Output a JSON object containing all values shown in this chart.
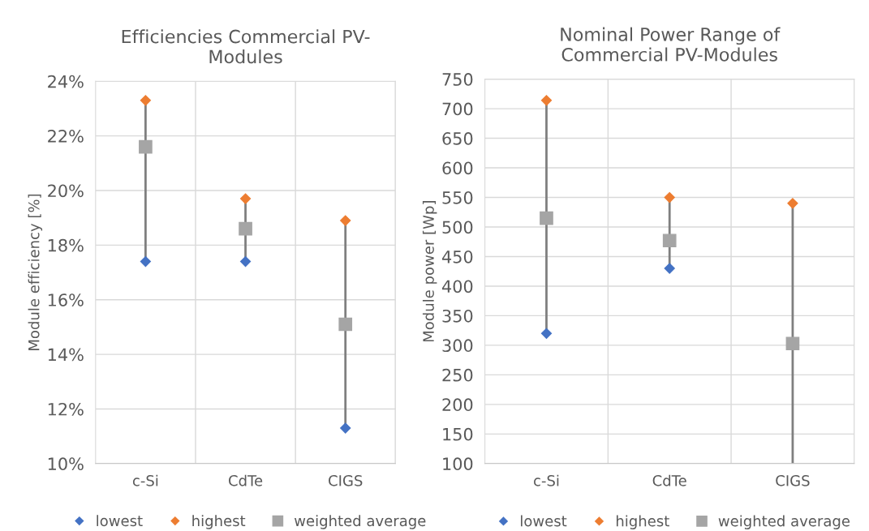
{
  "chart_data": [
    {
      "type": "scatter",
      "title": "Efficiencies Commercial PV-\nModules",
      "ylabel": "Module efficiency [%]",
      "categories": [
        "c-Si",
        "CdTe",
        "CIGS"
      ],
      "series": [
        {
          "name": "lowest",
          "color": "#4472c4",
          "marker": "diamond",
          "values": [
            17.4,
            17.4,
            11.3
          ]
        },
        {
          "name": "highest",
          "color": "#ed7d31",
          "marker": "diamond",
          "values": [
            23.3,
            19.7,
            18.9
          ]
        },
        {
          "name": "weighted average",
          "color": "#a5a5a5",
          "marker": "square",
          "values": [
            21.6,
            18.6,
            15.1
          ]
        }
      ],
      "ylim": [
        10,
        24
      ],
      "yticks": [
        {
          "value": 10,
          "label": "10%"
        },
        {
          "value": 12,
          "label": "12%"
        },
        {
          "value": 14,
          "label": "14%"
        },
        {
          "value": 16,
          "label": "16%"
        },
        {
          "value": 18,
          "label": "18%"
        },
        {
          "value": 20,
          "label": "20%"
        },
        {
          "value": 22,
          "label": "22%"
        },
        {
          "value": 24,
          "label": "24%"
        }
      ],
      "grid": true,
      "legend": "bottom"
    },
    {
      "type": "scatter",
      "title": "Nominal Power Range of\nCommercial PV-Modules",
      "ylabel": "Module power [Wp]",
      "categories": [
        "c-Si",
        "CdTe",
        "CIGS"
      ],
      "series": [
        {
          "name": "lowest",
          "color": "#4472c4",
          "marker": "diamond",
          "values": [
            320,
            430,
            null
          ]
        },
        {
          "name": "highest",
          "color": "#ed7d31",
          "marker": "diamond",
          "values": [
            714,
            550,
            540
          ]
        },
        {
          "name": "weighted average",
          "color": "#a5a5a5",
          "marker": "square",
          "values": [
            515,
            477,
            303
          ]
        }
      ],
      "ylim": [
        100,
        750
      ],
      "yticks": [
        100,
        150,
        200,
        250,
        300,
        350,
        400,
        450,
        500,
        550,
        600,
        650,
        700,
        750
      ],
      "grid": true,
      "legend": "bottom"
    }
  ]
}
